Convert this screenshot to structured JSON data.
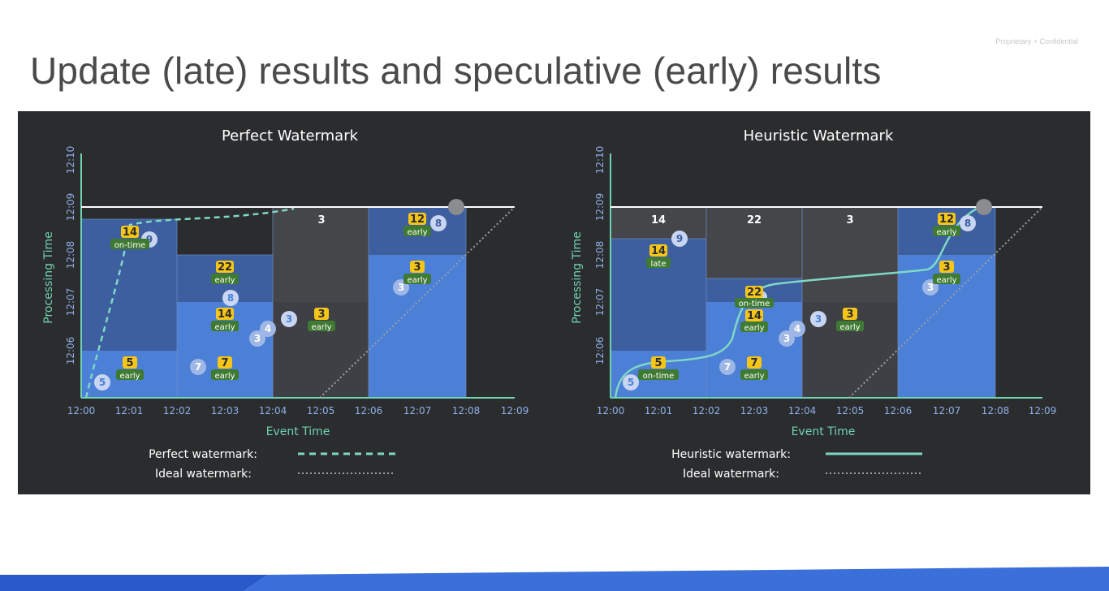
{
  "slide": {
    "title": "Update (late) results and speculative (early) results",
    "confidential_note": "Proprietary + Confidential"
  },
  "colors": {
    "panel_bg": "#2b2c2e",
    "axis": "#6fd3b0",
    "tick_label": "#8fb0e8",
    "pane_base": "#3d5e9f",
    "pane_bright": "#4c7fd6",
    "pane_dark": "#454649",
    "watermark_line": "#7fd8c5",
    "badge_yellow": "#f5c518",
    "badge_green": "#3f7a32",
    "footer_blue": "#3b6fd9"
  },
  "legend_lines": {
    "perfect": "dashed",
    "heuristic": "solid",
    "ideal": "dotted"
  },
  "charts": [
    {
      "id": "perfect",
      "title": "Perfect Watermark",
      "x_label": "Event Time",
      "y_label": "Processing Time",
      "x_ticks": [
        "12:00",
        "12:01",
        "12:02",
        "12:03",
        "12:04",
        "12:05",
        "12:06",
        "12:07",
        "12:08",
        "12:09"
      ],
      "y_ticks": [
        "12:06",
        "12:07",
        "12:08",
        "12:09",
        "12:10"
      ],
      "legend": [
        {
          "label": "Perfect watermark:",
          "style": "dashed"
        },
        {
          "label": "Ideal watermark:",
          "style": "dotted"
        }
      ],
      "results": [
        {
          "value": "14",
          "tag": "on-time"
        },
        {
          "value": "22",
          "tag": "early"
        },
        {
          "value": "14",
          "tag": "early"
        },
        {
          "value": "5",
          "tag": "early"
        },
        {
          "value": "7",
          "tag": "early"
        },
        {
          "value": "3",
          "tag": "early"
        },
        {
          "value": "3",
          "tag": ""
        },
        {
          "value": "12",
          "tag": "early"
        },
        {
          "value": "3",
          "tag": "early"
        }
      ],
      "datums": [
        "5",
        "9",
        "7",
        "8",
        "3",
        "4",
        "3",
        "8",
        "3"
      ]
    },
    {
      "id": "heuristic",
      "title": "Heuristic Watermark",
      "x_label": "Event Time",
      "y_label": "Processing Time",
      "x_ticks": [
        "12:00",
        "12:01",
        "12:02",
        "12:03",
        "12:04",
        "12:05",
        "12:06",
        "12:07",
        "12:08",
        "12:09"
      ],
      "y_ticks": [
        "12:06",
        "12:07",
        "12:08",
        "12:09",
        "12:10"
      ],
      "legend": [
        {
          "label": "Heuristic watermark:",
          "style": "solid"
        },
        {
          "label": "Ideal watermark:",
          "style": "dotted"
        }
      ],
      "results": [
        {
          "value": "14",
          "tag": ""
        },
        {
          "value": "14",
          "tag": "late"
        },
        {
          "value": "22",
          "tag": ""
        },
        {
          "value": "22",
          "tag": "on-time"
        },
        {
          "value": "14",
          "tag": "early"
        },
        {
          "value": "3",
          "tag": ""
        },
        {
          "value": "5",
          "tag": "on-time"
        },
        {
          "value": "7",
          "tag": "early"
        },
        {
          "value": "3",
          "tag": "early"
        },
        {
          "value": "12",
          "tag": "early"
        },
        {
          "value": "3",
          "tag": "early"
        }
      ],
      "datums": [
        "9",
        "5",
        "7",
        "3",
        "4",
        "3",
        "8",
        "3"
      ]
    }
  ]
}
